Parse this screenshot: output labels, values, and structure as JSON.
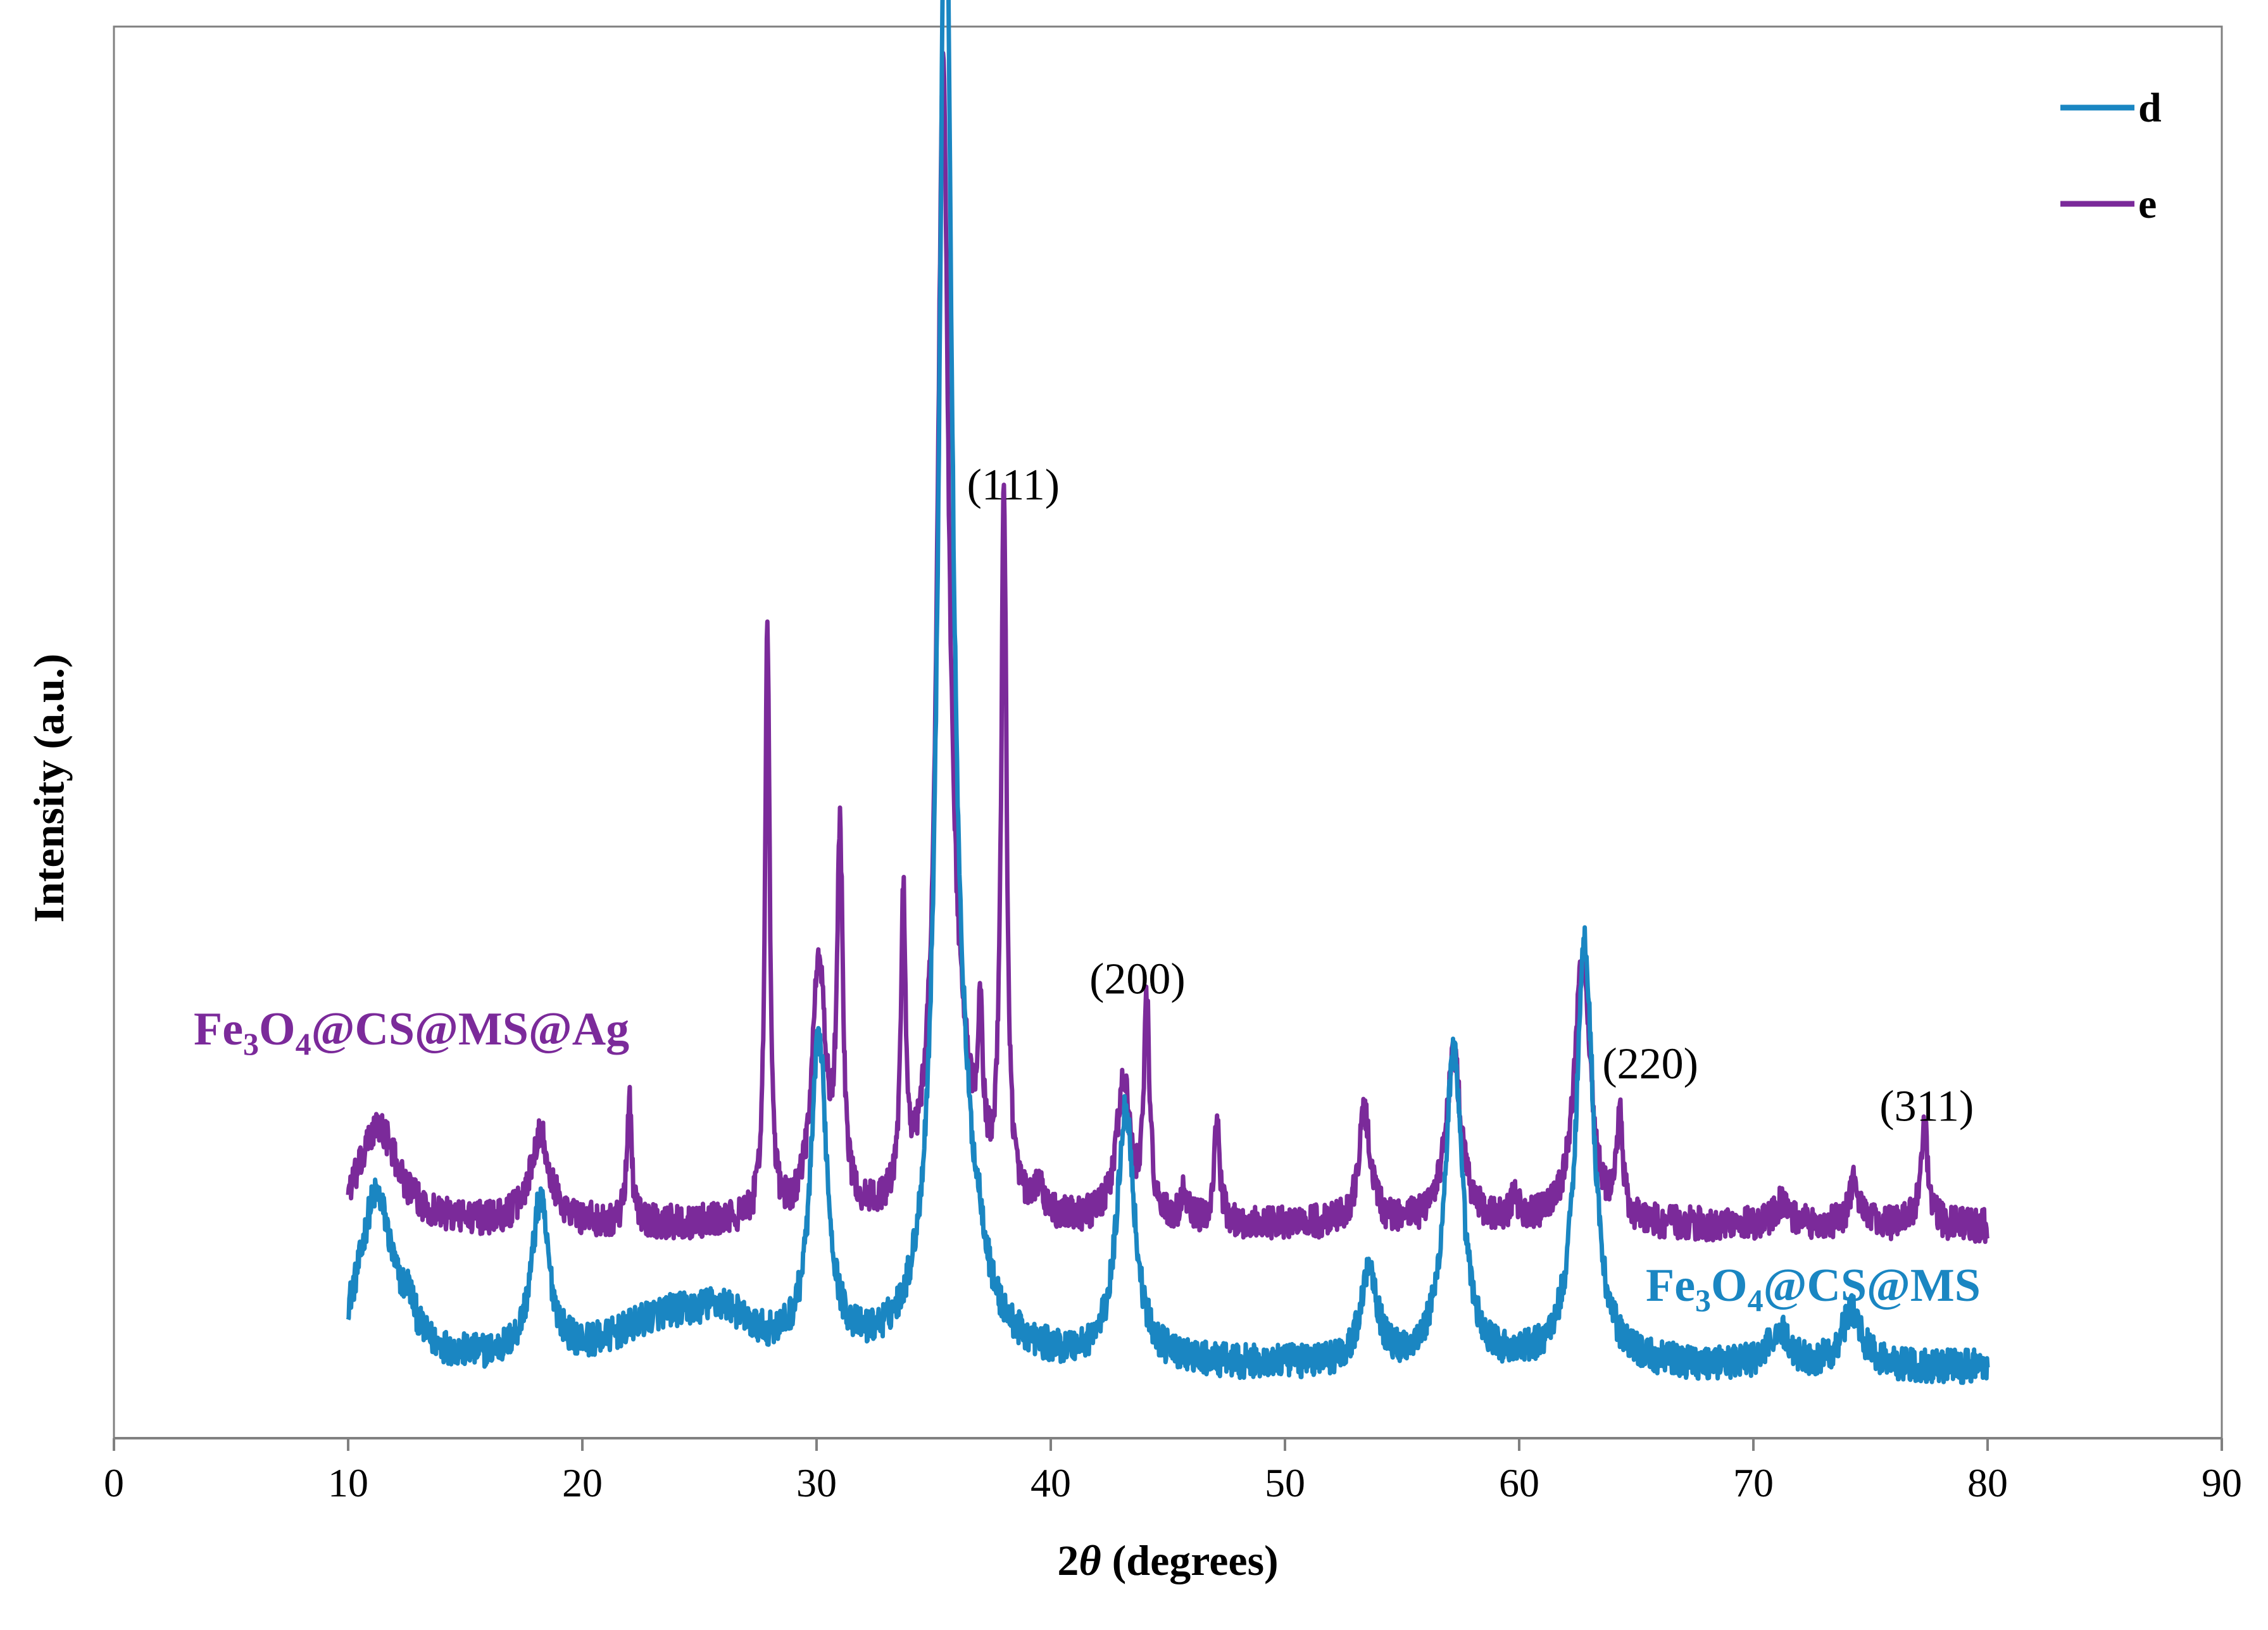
{
  "chart_data": {
    "type": "line",
    "title": "",
    "xlabel_prefix": "2",
    "xlabel_theta": "θ",
    "xlabel_suffix": " (degrees)",
    "ylabel": "Intensity (a.u.)",
    "xlim": [
      0,
      90
    ],
    "ylim": [
      0,
      100
    ],
    "xticks": [
      0,
      10,
      20,
      30,
      40,
      50,
      60,
      70,
      80,
      90
    ],
    "grid": false,
    "legend_position": "top-right",
    "colors": {
      "d": "#1a86c2",
      "e": "#7b2a9a",
      "axis": "#808080"
    },
    "series": [
      {
        "name": "d",
        "sample_label": {
          "p1": "Fe",
          "s1": "3",
          "p2": "O",
          "s2": "4",
          "p3": "@CS@MS"
        },
        "baseline": 5.0,
        "peaks": [
          [
            11.2,
            12,
            0.9
          ],
          [
            12.6,
            2,
            0.3
          ],
          [
            18.2,
            11,
            0.45
          ],
          [
            23.5,
            3.0,
            2.5
          ],
          [
            26.0,
            2.5,
            1.4
          ],
          [
            30.1,
            22,
            0.42
          ],
          [
            35.5,
            98,
            0.32
          ],
          [
            35.9,
            14,
            0.9
          ],
          [
            37.0,
            2,
            0.3
          ],
          [
            43.2,
            18,
            0.45
          ],
          [
            53.6,
            7,
            0.4
          ],
          [
            57.2,
            22,
            0.45
          ],
          [
            62.8,
            30,
            0.45
          ],
          [
            71.1,
            2.5,
            0.5
          ],
          [
            74.2,
            4,
            0.5
          ]
        ]
      },
      {
        "name": "e",
        "sample_label": {
          "p1": "Fe",
          "s1": "3",
          "p2": "O",
          "s2": "4",
          "p3": "@CS@MS@Ag"
        },
        "baseline": 15.0,
        "peaks": [
          [
            11.3,
            7,
            1.0
          ],
          [
            18.2,
            6.5,
            0.5
          ],
          [
            22.0,
            9,
            0.12
          ],
          [
            27.9,
            42,
            0.12
          ],
          [
            30.1,
            18,
            0.35
          ],
          [
            31.0,
            26,
            0.15
          ],
          [
            33.7,
            21,
            0.12
          ],
          [
            35.4,
            75,
            0.28
          ],
          [
            35.9,
            10,
            0.8
          ],
          [
            37.0,
            10,
            0.12
          ],
          [
            38.0,
            50,
            0.14
          ],
          [
            39.5,
            2,
            0.15
          ],
          [
            43.1,
            10,
            0.35
          ],
          [
            44.1,
            15,
            0.15
          ],
          [
            45.7,
            2,
            0.15
          ],
          [
            47.1,
            7,
            0.15
          ],
          [
            53.4,
            8,
            0.3
          ],
          [
            57.2,
            12,
            0.4
          ],
          [
            59.8,
            1.5,
            0.2
          ],
          [
            62.7,
            19,
            0.4
          ],
          [
            64.3,
            7,
            0.15
          ],
          [
            71.2,
            1.5,
            0.4
          ],
          [
            74.3,
            3,
            0.25
          ],
          [
            77.3,
            7,
            0.2
          ]
        ]
      }
    ],
    "annotations": [
      {
        "text": "(111)",
        "x": 38.4,
        "y": 66.5
      },
      {
        "text": "(200)",
        "x": 43.7,
        "y": 31.5
      },
      {
        "text": "(220)",
        "x": 65.6,
        "y": 25.5
      },
      {
        "text": "(311)",
        "x": 77.4,
        "y": 22.5
      }
    ]
  }
}
